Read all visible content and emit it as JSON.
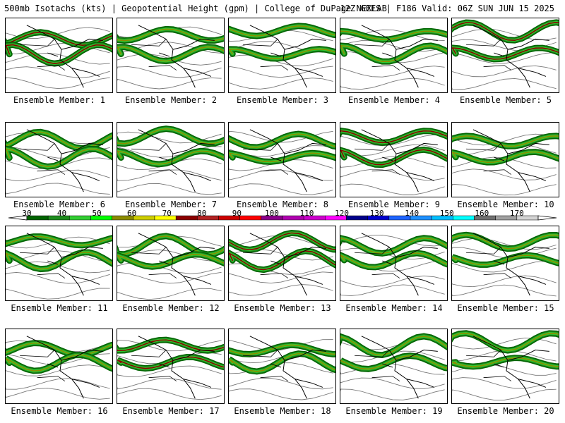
{
  "header": {
    "left": "500mb Isotachs (kts) | Geopotential Height (gpm) | College of DuPage NEXLAB",
    "right": "12Z GEFS | F186 Valid: 06Z SUN JUN 15 2025"
  },
  "panel_label_prefix": "Ensemble Member:",
  "members": [
    {
      "label": "Ensemble Member: 1"
    },
    {
      "label": "Ensemble Member: 2"
    },
    {
      "label": "Ensemble Member: 3"
    },
    {
      "label": "Ensemble Member: 4"
    },
    {
      "label": "Ensemble Member: 5"
    },
    {
      "label": "Ensemble Member: 6"
    },
    {
      "label": "Ensemble Member: 7"
    },
    {
      "label": "Ensemble Member: 8"
    },
    {
      "label": "Ensemble Member: 9"
    },
    {
      "label": "Ensemble Member: 10"
    },
    {
      "label": "Ensemble Member: 11"
    },
    {
      "label": "Ensemble Member: 12"
    },
    {
      "label": "Ensemble Member: 13"
    },
    {
      "label": "Ensemble Member: 14"
    },
    {
      "label": "Ensemble Member: 15"
    },
    {
      "label": "Ensemble Member: 16"
    },
    {
      "label": "Ensemble Member: 17"
    },
    {
      "label": "Ensemble Member: 18"
    },
    {
      "label": "Ensemble Member: 19"
    },
    {
      "label": "Ensemble Member: 20"
    }
  ],
  "colorbar": {
    "ticks": [
      "30",
      "40",
      "50",
      "60",
      "70",
      "80",
      "90",
      "100",
      "110",
      "120",
      "130",
      "140",
      "150",
      "160",
      "170"
    ],
    "colors": [
      "#006400",
      "#1e8c1e",
      "#32cd32",
      "#00ff00",
      "#8b8b00",
      "#cdcd00",
      "#ffff00",
      "#8b0000",
      "#b22222",
      "#cd0000",
      "#ff0000",
      "#8b008b",
      "#b000b0",
      "#cd00cd",
      "#ff00ff",
      "#00008b",
      "#0000cd",
      "#1e64ff",
      "#1e90ff",
      "#00bfff",
      "#00ffff",
      "#707070",
      "#a0a0a0",
      "#d3d3d3"
    ]
  },
  "map_style": {
    "jet_colors": [
      "#006400",
      "#1e8c1e",
      "#32cd32",
      "#00ff00",
      "#8b8b00",
      "#cdcd00",
      "#8b0000"
    ],
    "contour_color": "#777777",
    "boundary_color": "#000000"
  }
}
